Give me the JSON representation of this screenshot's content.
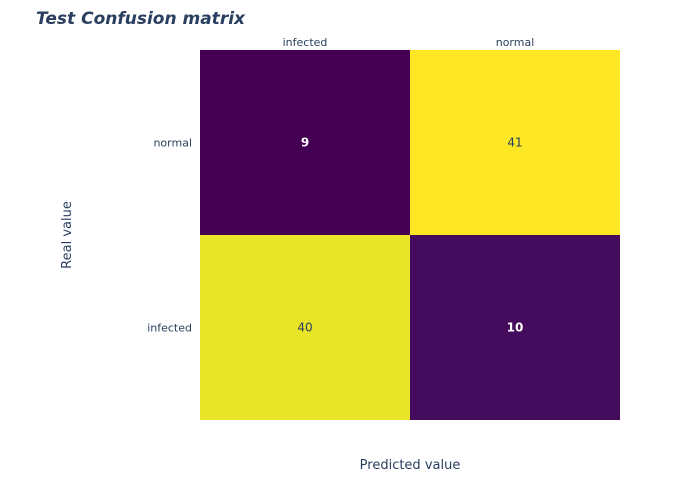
{
  "chart_data": {
    "type": "heatmap",
    "title": "Test Confusion matrix",
    "xlabel": "Predicted value",
    "ylabel": "Real value",
    "x_categories": [
      "infected",
      "normal"
    ],
    "y_categories_top_to_bottom": [
      "normal",
      "infected"
    ],
    "values": [
      [
        9,
        41
      ],
      [
        40,
        10
      ]
    ],
    "x_axis_side": "top",
    "show_values": true,
    "colorscale": "viridis",
    "zlim": [
      9,
      41
    ],
    "legend": "none"
  }
}
